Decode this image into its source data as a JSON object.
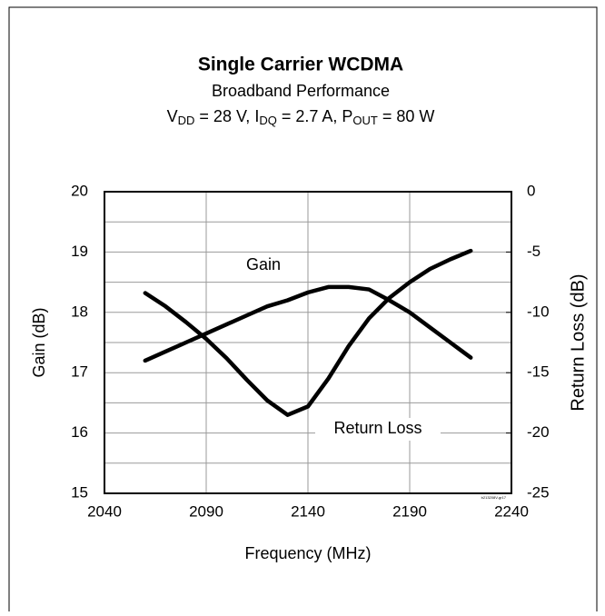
{
  "chart_data": {
    "type": "line",
    "title": "Single Carrier WCDMA",
    "subtitle": "Broadband Performance",
    "subtitle_parts": [
      "V",
      "DD",
      " = 28 V, I",
      "DQ",
      " = 2.7 A, P",
      "OUT",
      " = 80 W"
    ],
    "x_label": "Frequency (MHz)",
    "y_label": "Gain (dB)",
    "y2_label": "Return Loss (dB)",
    "x": [
      2060,
      2070,
      2080,
      2090,
      2100,
      2110,
      2120,
      2130,
      2140,
      2150,
      2160,
      2170,
      2180,
      2190,
      2200,
      2210,
      2220
    ],
    "series": [
      {
        "name": "Gain",
        "color": "#000000",
        "axis": "y",
        "values": [
          17.2,
          17.35,
          17.5,
          17.65,
          17.8,
          17.95,
          18.1,
          18.2,
          18.33,
          18.42,
          18.42,
          18.38,
          18.2,
          18.0,
          17.75,
          17.5,
          17.25
        ]
      },
      {
        "name": "Return Loss",
        "color": "#000000",
        "axis": "y2",
        "values": [
          -8.4,
          -9.5,
          -10.8,
          -12.2,
          -13.8,
          -15.6,
          -17.3,
          -18.5,
          -17.8,
          -15.5,
          -12.8,
          -10.5,
          -8.8,
          -7.5,
          -6.4,
          -5.6,
          -4.9
        ]
      }
    ],
    "xlim": [
      2040,
      2240
    ],
    "xticks": [
      2040,
      2090,
      2140,
      2190,
      2240
    ],
    "ylim": [
      15,
      20
    ],
    "yticks": [
      15,
      16,
      17,
      18,
      19,
      20
    ],
    "y_minor_ticks": [
      15.5,
      16.5,
      17.5,
      18.5,
      19.5
    ],
    "y2lim": [
      -25,
      0
    ],
    "y2ticks": [
      -25,
      -20,
      -15,
      -10,
      -5,
      0
    ],
    "grid": true,
    "footnote": "b213208V-gr17"
  }
}
